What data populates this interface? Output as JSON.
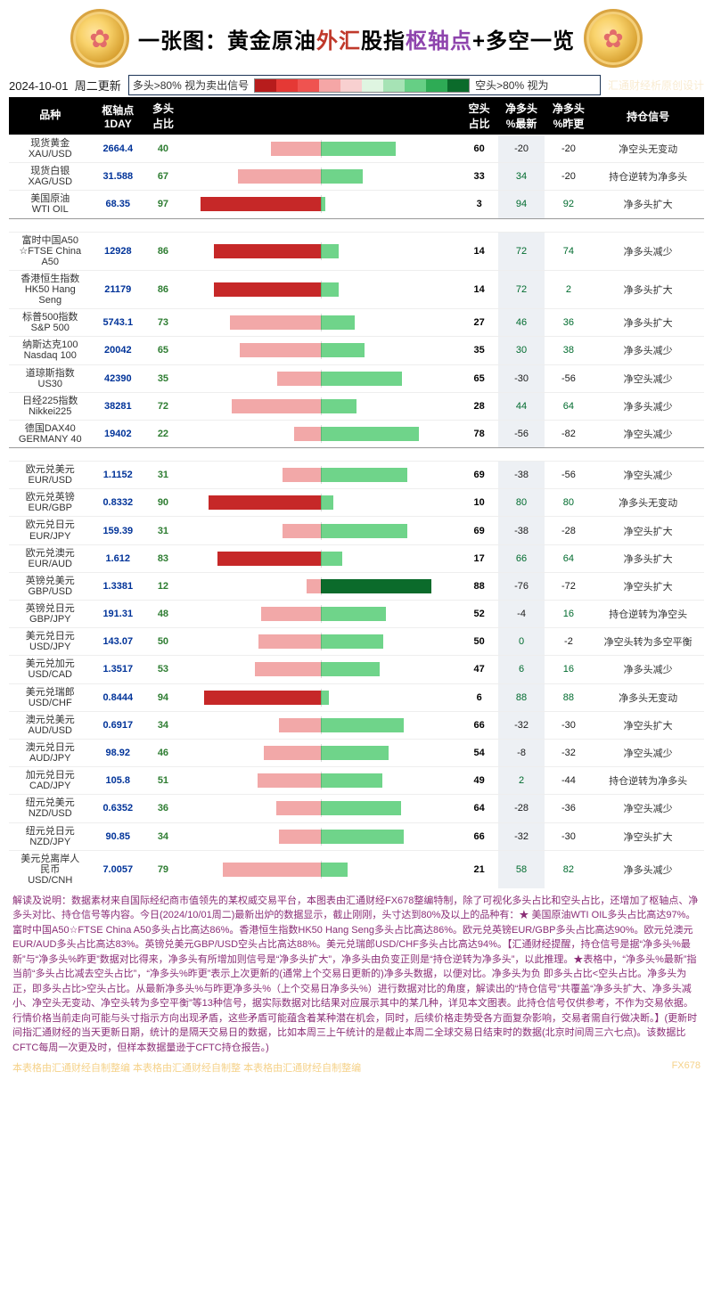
{
  "title": {
    "seg1": "一张图：",
    "seg2": "黄金原油",
    "seg3": "外汇",
    "seg4": "股指",
    "seg5": "枢轴点",
    "seg6": "+多空一览"
  },
  "sub": {
    "date": "2024-10-01",
    "day": "周二更新",
    "legend_left": "多头>80% 视为卖出信号",
    "legend_right": "空头>80% 视为",
    "credit": "汇通财经析原创设计"
  },
  "gradient_colors": [
    "#b71c1c",
    "#e53935",
    "#ef5350",
    "#f5a6a6",
    "#f8d0d0",
    "#dff5e1",
    "#a6e3b5",
    "#66cf85",
    "#2eab55",
    "#0b6b2b"
  ],
  "headers": {
    "name": "品种",
    "pivot": "枢轴点\n1DAY",
    "long": "多头\n占比",
    "short": "空头\n占比",
    "net_now": "净多头\n%最新",
    "net_prev": "净多头\n%昨更",
    "signal": "持仓信号"
  },
  "bar": {
    "strong_red": "#c62828",
    "light_red": "#f2a8a8",
    "strong_green": "#0b6b2b",
    "light_green": "#6fd48a",
    "threshold": 80
  },
  "rows": [
    {
      "name": "现货黄金\nXAU/USD",
      "pivot": "2664.4",
      "long": 40,
      "short": 60,
      "net_now": -20,
      "net_prev": -20,
      "signal": "净空头无变动"
    },
    {
      "name": "现货白银\nXAG/USD",
      "pivot": "31.588",
      "long": 67,
      "short": 33,
      "net_now": 34,
      "net_prev": -20,
      "signal": "持仓逆转为净多头"
    },
    {
      "name": "美国原油\nWTI OIL",
      "pivot": "68.35",
      "long": 97,
      "short": 3,
      "net_now": 94,
      "net_prev": 92,
      "signal": "净多头扩大"
    },
    {
      "name": "富时中国A50\n☆FTSE China\nA50",
      "pivot": "12928",
      "long": 86,
      "short": 14,
      "net_now": 72,
      "net_prev": 74,
      "signal": "净多头减少"
    },
    {
      "name": "香港恒生指数\nHK50 Hang\nSeng",
      "pivot": "21179",
      "long": 86,
      "short": 14,
      "net_now": 72,
      "net_prev": 2,
      "signal": "净多头扩大"
    },
    {
      "name": "标普500指数\nS&P 500",
      "pivot": "5743.1",
      "long": 73,
      "short": 27,
      "net_now": 46,
      "net_prev": 36,
      "signal": "净多头扩大"
    },
    {
      "name": "纳斯达克100\nNasdaq 100",
      "pivot": "20042",
      "long": 65,
      "short": 35,
      "net_now": 30,
      "net_prev": 38,
      "signal": "净多头减少"
    },
    {
      "name": "道琼斯指数\nUS30",
      "pivot": "42390",
      "long": 35,
      "short": 65,
      "net_now": -30,
      "net_prev": -56,
      "signal": "净空头减少"
    },
    {
      "name": "日经225指数\nNikkei225",
      "pivot": "38281",
      "long": 72,
      "short": 28,
      "net_now": 44,
      "net_prev": 64,
      "signal": "净多头减少"
    },
    {
      "name": "德国DAX40\nGERMANY 40",
      "pivot": "19402",
      "long": 22,
      "short": 78,
      "net_now": -56,
      "net_prev": -82,
      "signal": "净空头减少"
    },
    {
      "name": "欧元兑美元\nEUR/USD",
      "pivot": "1.1152",
      "long": 31,
      "short": 69,
      "net_now": -38,
      "net_prev": -56,
      "signal": "净空头减少"
    },
    {
      "name": "欧元兑英镑\nEUR/GBP",
      "pivot": "0.8332",
      "long": 90,
      "short": 10,
      "net_now": 80,
      "net_prev": 80,
      "signal": "净多头无变动"
    },
    {
      "name": "欧元兑日元\nEUR/JPY",
      "pivot": "159.39",
      "long": 31,
      "short": 69,
      "net_now": -38,
      "net_prev": -28,
      "signal": "净空头扩大"
    },
    {
      "name": "欧元兑澳元\nEUR/AUD",
      "pivot": "1.612",
      "long": 83,
      "short": 17,
      "net_now": 66,
      "net_prev": 64,
      "signal": "净多头扩大"
    },
    {
      "name": "英镑兑美元\nGBP/USD",
      "pivot": "1.3381",
      "long": 12,
      "short": 88,
      "net_now": -76,
      "net_prev": -72,
      "signal": "净空头扩大"
    },
    {
      "name": "英镑兑日元\nGBP/JPY",
      "pivot": "191.31",
      "long": 48,
      "short": 52,
      "net_now": -4,
      "net_prev": 16,
      "signal": "持仓逆转为净空头"
    },
    {
      "name": "美元兑日元\nUSD/JPY",
      "pivot": "143.07",
      "long": 50,
      "short": 50,
      "net_now": 0,
      "net_prev": -2,
      "signal": "净空头转为多空平衡"
    },
    {
      "name": "美元兑加元\nUSD/CAD",
      "pivot": "1.3517",
      "long": 53,
      "short": 47,
      "net_now": 6,
      "net_prev": 16,
      "signal": "净多头减少"
    },
    {
      "name": "美元兑瑞郎\nUSD/CHF",
      "pivot": "0.8444",
      "long": 94,
      "short": 6,
      "net_now": 88,
      "net_prev": 88,
      "signal": "净多头无变动"
    },
    {
      "name": "澳元兑美元\nAUD/USD",
      "pivot": "0.6917",
      "long": 34,
      "short": 66,
      "net_now": -32,
      "net_prev": -30,
      "signal": "净空头扩大"
    },
    {
      "name": "澳元兑日元\nAUD/JPY",
      "pivot": "98.92",
      "long": 46,
      "short": 54,
      "net_now": -8,
      "net_prev": -32,
      "signal": "净空头减少"
    },
    {
      "name": "加元兑日元\nCAD/JPY",
      "pivot": "105.8",
      "long": 51,
      "short": 49,
      "net_now": 2,
      "net_prev": -44,
      "signal": "持仓逆转为净多头"
    },
    {
      "name": "纽元兑美元\nNZD/USD",
      "pivot": "0.6352",
      "long": 36,
      "short": 64,
      "net_now": -28,
      "net_prev": -36,
      "signal": "净空头减少"
    },
    {
      "name": "纽元兑日元\nNZD/JPY",
      "pivot": "90.85",
      "long": 34,
      "short": 66,
      "net_now": -32,
      "net_prev": -30,
      "signal": "净空头扩大"
    },
    {
      "name": "美元兑离岸人\n民币\nUSD/CNH",
      "pivot": "7.0057",
      "long": 79,
      "short": 21,
      "net_now": 58,
      "net_prev": 82,
      "signal": "净多头减少"
    }
  ],
  "section_breaks": [
    3,
    10
  ],
  "commentary": "解读及说明：数据素材来自国际经纪商市值领先的某权威交易平台，本图表由汇通财经FX678整编特制，除了可视化多头占比和空头占比，还增加了枢轴点、净多头对比、持仓信号等内容。今日(2024/10/01周二)最新出炉的数据显示，截止刚刚，头寸达到80%及以上的品种有：★ 美国原油WTI OIL多头占比高达97%。富时中国A50☆FTSE China A50多头占比高达86%。香港恒生指数HK50 Hang Seng多头占比高达86%。欧元兑英镑EUR/GBP多头占比高达90%。欧元兑澳元EUR/AUD多头占比高达83%。英镑兑美元GBP/USD空头占比高达88%。美元兑瑞郎USD/CHF多头占比高达94%。【汇通财经提醒，持仓信号是据“净多头%最新”与“净多头%昨更”数据对比得来，净多头有所增加则信号是“净多头扩大”，净多头由负变正则是“持仓逆转为净多头”，以此推理。★表格中，“净多头%最新”指当前“多头占比减去空头占比”，“净多头%昨更”表示上次更新的(通常上个交易日更新的)净多头数据，以便对比。净多头为负 即多头占比<空头占比。净多头为正，即多头占比>空头占比。从最新净多头%与昨更净多头%（上个交易日净多头%）进行数据对比的角度，解读出的“持仓信号”共覆盖“净多头扩大、净多头减小、净空头无变动、净空头转为多空平衡”等13种信号，据实际数据对比结果对应展示其中的某几种，详见本文图表。此持仓信号仅供参考，不作为交易依据。行情价格当前走向可能与头寸指示方向出现矛盾，这些矛盾可能蕴含着某种潜在机会，同时，后续价格走势受各方面复杂影响，交易者需自行做决断。】(更新时间指汇通财经的当天更新日期，统计的是隔天交易日的数据，比如本周三上午统计的是截止本周二全球交易日结束时的数据(北京时间周三六七点)。该数据比CFTC每周一次更及时，但样本数据量逊于CFTC持仓报告。)",
  "footer_left": "本表格由汇通财经自制整编  本表格由汇通财经自制整  本表格由汇通财经自制整编",
  "footer_right": "FX678"
}
